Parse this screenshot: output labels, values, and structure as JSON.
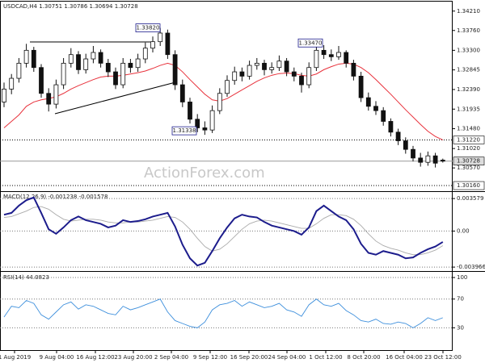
{
  "chart_data": [
    {
      "type": "candlestick",
      "title": "USDCAD,H4  1.30751 1.30786 1.30694 1.30728",
      "watermark": "ActionForex.com",
      "ylim": [
        1.3003,
        1.3443
      ],
      "yticks": [
        {
          "value": 1.3421,
          "label": "1.34210"
        },
        {
          "value": 1.3376,
          "label": "1.33760"
        },
        {
          "value": 1.333,
          "label": "1.33300"
        },
        {
          "value": 1.32845,
          "label": "1.32845"
        },
        {
          "value": 1.3239,
          "label": "1.32390"
        },
        {
          "value": 1.31935,
          "label": "1.31935"
        },
        {
          "value": 1.3148,
          "label": "1.31480"
        },
        {
          "value": 1.3102,
          "label": "1.31020"
        },
        {
          "value": 1.3057,
          "label": "1.30570"
        }
      ],
      "levels": [
        {
          "value": 1.3122,
          "label": "1.31220"
        },
        {
          "value": 1.30728,
          "label": "1.30728"
        },
        {
          "value": 1.3016,
          "label": "1.30160"
        }
      ],
      "annotations": [
        {
          "value": 1.3382,
          "label": "1.33820"
        },
        {
          "value": 1.31338,
          "label": "1.31338"
        },
        {
          "value": 1.3347,
          "label": "1.33470"
        }
      ],
      "ohlc": [
        [
          1.321,
          1.3255,
          1.3198,
          1.324
        ],
        [
          1.324,
          1.3275,
          1.3228,
          1.3265
        ],
        [
          1.3265,
          1.3312,
          1.3255,
          1.33
        ],
        [
          1.33,
          1.3345,
          1.329,
          1.333
        ],
        [
          1.333,
          1.3338,
          1.328,
          1.329
        ],
        [
          1.329,
          1.3298,
          1.322,
          1.323
        ],
        [
          1.323,
          1.3242,
          1.3188,
          1.3205
        ],
        [
          1.3205,
          1.3262,
          1.3195,
          1.325
        ],
        [
          1.325,
          1.3312,
          1.324,
          1.33
        ],
        [
          1.33,
          1.3335,
          1.329,
          1.332
        ],
        [
          1.332,
          1.3328,
          1.3275,
          1.3285
        ],
        [
          1.3285,
          1.3322,
          1.3276,
          1.331
        ],
        [
          1.331,
          1.334,
          1.33,
          1.3325
        ],
        [
          1.3325,
          1.3332,
          1.329,
          1.33
        ],
        [
          1.33,
          1.331,
          1.3268,
          1.328
        ],
        [
          1.328,
          1.329,
          1.324,
          1.325
        ],
        [
          1.325,
          1.3312,
          1.3242,
          1.33
        ],
        [
          1.33,
          1.331,
          1.3278,
          1.329
        ],
        [
          1.329,
          1.3322,
          1.328,
          1.331
        ],
        [
          1.331,
          1.3348,
          1.33,
          1.3335
        ],
        [
          1.3335,
          1.3362,
          1.3325,
          1.335
        ],
        [
          1.335,
          1.3382,
          1.334,
          1.337
        ],
        [
          1.337,
          1.3378,
          1.331,
          1.332
        ],
        [
          1.332,
          1.333,
          1.3238,
          1.325
        ],
        [
          1.325,
          1.3262,
          1.3198,
          1.321
        ],
        [
          1.321,
          1.322,
          1.316,
          1.317
        ],
        [
          1.317,
          1.3182,
          1.314,
          1.315
        ],
        [
          1.315,
          1.3165,
          1.31338,
          1.3145
        ],
        [
          1.3145,
          1.3202,
          1.3138,
          1.319
        ],
        [
          1.319,
          1.3242,
          1.3182,
          1.323
        ],
        [
          1.323,
          1.3272,
          1.3222,
          1.326
        ],
        [
          1.326,
          1.3292,
          1.325,
          1.328
        ],
        [
          1.328,
          1.329,
          1.3258,
          1.327
        ],
        [
          1.327,
          1.3306,
          1.3262,
          1.3295
        ],
        [
          1.3295,
          1.3312,
          1.3285,
          1.33
        ],
        [
          1.33,
          1.3308,
          1.3272,
          1.3285
        ],
        [
          1.3285,
          1.3302,
          1.3276,
          1.329
        ],
        [
          1.329,
          1.3318,
          1.3282,
          1.3305
        ],
        [
          1.3305,
          1.3312,
          1.327,
          1.328
        ],
        [
          1.328,
          1.329,
          1.3258,
          1.327
        ],
        [
          1.327,
          1.3278,
          1.3232,
          1.325
        ],
        [
          1.325,
          1.3302,
          1.3242,
          1.329
        ],
        [
          1.329,
          1.3347,
          1.3282,
          1.333
        ],
        [
          1.333,
          1.3342,
          1.331,
          1.332
        ],
        [
          1.332,
          1.3332,
          1.3305,
          1.3315
        ],
        [
          1.3315,
          1.334,
          1.3308,
          1.3325
        ],
        [
          1.3325,
          1.333,
          1.329,
          1.33
        ],
        [
          1.33,
          1.3308,
          1.326,
          1.327
        ],
        [
          1.327,
          1.328,
          1.321,
          1.322
        ],
        [
          1.322,
          1.3232,
          1.319,
          1.32
        ],
        [
          1.32,
          1.3212,
          1.318,
          1.319
        ],
        [
          1.319,
          1.3198,
          1.3155,
          1.3165
        ],
        [
          1.3165,
          1.3172,
          1.313,
          1.314
        ],
        [
          1.314,
          1.3148,
          1.311,
          1.312
        ],
        [
          1.312,
          1.3128,
          1.309,
          1.31
        ],
        [
          1.31,
          1.3108,
          1.3072,
          1.308
        ],
        [
          1.308,
          1.3092,
          1.306,
          1.307
        ],
        [
          1.307,
          1.3095,
          1.3062,
          1.3085
        ],
        [
          1.3085,
          1.3092,
          1.3058,
          1.3068
        ],
        [
          1.30751,
          1.30786,
          1.30694,
          1.30728
        ]
      ],
      "moving_average": {
        "color": "#e8323c",
        "values": [
          1.315,
          1.3165,
          1.318,
          1.32,
          1.321,
          1.3215,
          1.3218,
          1.3222,
          1.323,
          1.324,
          1.3248,
          1.3255,
          1.3262,
          1.3268,
          1.327,
          1.327,
          1.3272,
          1.3275,
          1.3278,
          1.3282,
          1.3288,
          1.3295,
          1.33,
          1.3295,
          1.328,
          1.3262,
          1.3245,
          1.3228,
          1.3215,
          1.3212,
          1.3218,
          1.3228,
          1.3238,
          1.3248,
          1.3258,
          1.3266,
          1.3272,
          1.3276,
          1.3277,
          1.3276,
          1.3272,
          1.327,
          1.3275,
          1.3285,
          1.3292,
          1.3298,
          1.33,
          1.3298,
          1.329,
          1.3278,
          1.3262,
          1.3245,
          1.3228,
          1.321,
          1.3192,
          1.3175,
          1.3158,
          1.3142,
          1.313,
          1.3122
        ]
      }
    },
    {
      "type": "line",
      "title": "MACD(12,26,9) -0.001238 -0.001578",
      "ylim": [
        -0.0044,
        0.0043
      ],
      "yticks": [
        0.003579,
        {
          "value": 0,
          "label": "0.00"
        },
        -0.003966
      ],
      "grid": true,
      "series": [
        {
          "color": "#aaaaaa",
          "values": [
            0.0015,
            0.0016,
            0.0019,
            0.0022,
            0.0026,
            0.0027,
            0.0024,
            0.0018,
            0.0013,
            0.0011,
            0.0012,
            0.0013,
            0.0013,
            0.0012,
            0.001,
            0.0009,
            0.0009,
            0.001,
            0.001,
            0.0011,
            0.0012,
            0.0014,
            0.0016,
            0.0015,
            0.001,
            0.0002,
            -0.0008,
            -0.0017,
            -0.0022,
            -0.002,
            -0.0014,
            -0.0006,
            0.0002,
            0.0008,
            0.0011,
            0.0012,
            0.0011,
            0.0009,
            0.0007,
            0.0005,
            0.0003,
            0.0003,
            0.0008,
            0.0014,
            0.0018,
            0.0018,
            0.0017,
            0.0013,
            0.0006,
            -0.0003,
            -0.0011,
            -0.0016,
            -0.0019,
            -0.0021,
            -0.0024,
            -0.0026,
            -0.0026,
            -0.0024,
            -0.0021,
            -0.0016
          ]
        },
        {
          "color": "#1c1c8c",
          "values": [
            0.0018,
            0.002,
            0.0028,
            0.0034,
            0.0037,
            0.002,
            0.0002,
            -0.0003,
            0.0004,
            0.0012,
            0.0016,
            0.0012,
            0.001,
            0.0008,
            0.0004,
            0.0006,
            0.0012,
            0.001,
            0.0011,
            0.0013,
            0.0016,
            0.0018,
            0.002,
            0.0005,
            -0.0015,
            -0.003,
            -0.0038,
            -0.0035,
            -0.0022,
            -0.0008,
            0.0004,
            0.0014,
            0.0018,
            0.0016,
            0.0015,
            0.001,
            0.0006,
            0.0004,
            0.0002,
            0.0,
            -0.0004,
            0.0004,
            0.0022,
            0.0028,
            0.0022,
            0.0016,
            0.0012,
            0.0002,
            -0.0014,
            -0.0024,
            -0.0026,
            -0.0022,
            -0.0024,
            -0.0026,
            -0.003,
            -0.0029,
            -0.0024,
            -0.002,
            -0.0017,
            -0.0012
          ]
        }
      ]
    },
    {
      "type": "line",
      "title": "RSI(14) 44.0823",
      "ylim": [
        -2.2,
        107.9
      ],
      "yticks": [
        100,
        70,
        30
      ],
      "grid": true,
      "x_labels": [
        "1 Aug 2019",
        "9 Aug 04:00",
        "16 Aug 12:00",
        "23 Aug 20:00",
        "2 Sep 04:00",
        "9 Sep 12:00",
        "16 Sep 20:00",
        "24 Sep 04:00",
        "1 Oct 12:00",
        "8 Oct 20:00",
        "16 Oct 04:00",
        "23 Oct 12:00"
      ],
      "series": [
        {
          "color": "#3d8fdc",
          "values": [
            45,
            60,
            58,
            68,
            64,
            48,
            42,
            52,
            62,
            66,
            56,
            62,
            60,
            55,
            50,
            48,
            60,
            55,
            58,
            62,
            66,
            70,
            52,
            40,
            36,
            32,
            30,
            38,
            55,
            62,
            64,
            68,
            60,
            66,
            62,
            58,
            60,
            64,
            55,
            52,
            46,
            62,
            70,
            62,
            60,
            64,
            54,
            48,
            40,
            38,
            42,
            36,
            35,
            38,
            36,
            30,
            36,
            44,
            40,
            44
          ]
        }
      ]
    }
  ]
}
